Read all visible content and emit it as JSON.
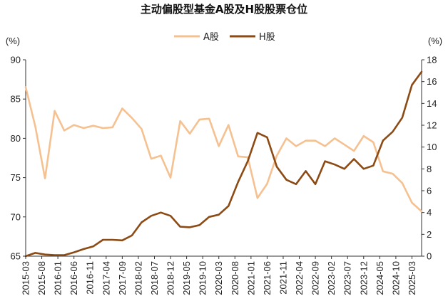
{
  "chart_data": {
    "type": "line",
    "title": "主动偏股型基金A股及H股股票仓位",
    "left_unit": "(%)",
    "right_unit": "(%)",
    "ylim_left": [
      65,
      90
    ],
    "yticks_left": [
      65,
      70,
      75,
      80,
      85,
      90
    ],
    "ylim_right": [
      0,
      18
    ],
    "yticks_right": [
      0,
      2,
      4,
      6,
      8,
      10,
      12,
      14,
      16,
      18
    ],
    "x": [
      "2015-03",
      "2015-06",
      "2015-09",
      "2015-12",
      "2016-03",
      "2016-06",
      "2016-09",
      "2016-12",
      "2017-03",
      "2017-06",
      "2017-09",
      "2017-12",
      "2018-03",
      "2018-06",
      "2018-09",
      "2018-12",
      "2019-03",
      "2019-06",
      "2019-09",
      "2019-12",
      "2020-03",
      "2020-06",
      "2020-09",
      "2020-12",
      "2021-03",
      "2021-06",
      "2021-09",
      "2021-12",
      "2022-03",
      "2022-06",
      "2022-09",
      "2022-12",
      "2023-03",
      "2023-06",
      "2023-09",
      "2023-12",
      "2024-03",
      "2024-06",
      "2024-09",
      "2024-12",
      "2025-03",
      "2025-06"
    ],
    "xtick_labels": [
      "2015-03",
      "2015-08",
      "2016-01",
      "2016-06",
      "2016-11",
      "2017-04",
      "2017-09",
      "2018-02",
      "2018-07",
      "2018-12",
      "2019-05",
      "2019-10",
      "2020-03",
      "2020-08",
      "2021-01",
      "2021-06",
      "2021-11",
      "2022-04",
      "2022-09",
      "2023-02",
      "2023-07",
      "2023-12",
      "2024-05",
      "2024-10",
      "2025-03"
    ],
    "legend": {
      "position": "top-center"
    },
    "series": [
      {
        "name": "A股",
        "axis": "left",
        "color": "#F5C191",
        "values": [
          86.5,
          81.5,
          74.9,
          83.5,
          81.0,
          81.7,
          81.3,
          81.6,
          81.3,
          81.4,
          83.8,
          82.6,
          81.2,
          77.4,
          77.8,
          75.0,
          82.2,
          80.6,
          82.4,
          82.5,
          79.0,
          81.7,
          77.7,
          77.6,
          72.4,
          74.2,
          77.8,
          80.0,
          79.0,
          79.7,
          79.7,
          79.0,
          80.0,
          79.2,
          78.4,
          80.3,
          79.5,
          75.8,
          75.5,
          74.3,
          71.8,
          70.7
        ]
      },
      {
        "name": "H股",
        "axis": "right",
        "color": "#8C4A14",
        "values": [
          0.0,
          0.3,
          0.15,
          0.1,
          0.1,
          0.35,
          0.65,
          0.9,
          1.5,
          1.5,
          1.45,
          1.9,
          3.1,
          3.7,
          4.0,
          3.7,
          2.7,
          2.65,
          2.85,
          3.6,
          3.8,
          4.6,
          6.8,
          8.7,
          11.3,
          10.9,
          8.2,
          7.0,
          6.6,
          7.8,
          6.6,
          8.7,
          8.4,
          8.0,
          8.9,
          8.0,
          8.3,
          10.6,
          11.4,
          12.7,
          15.7,
          16.9
        ]
      }
    ]
  }
}
